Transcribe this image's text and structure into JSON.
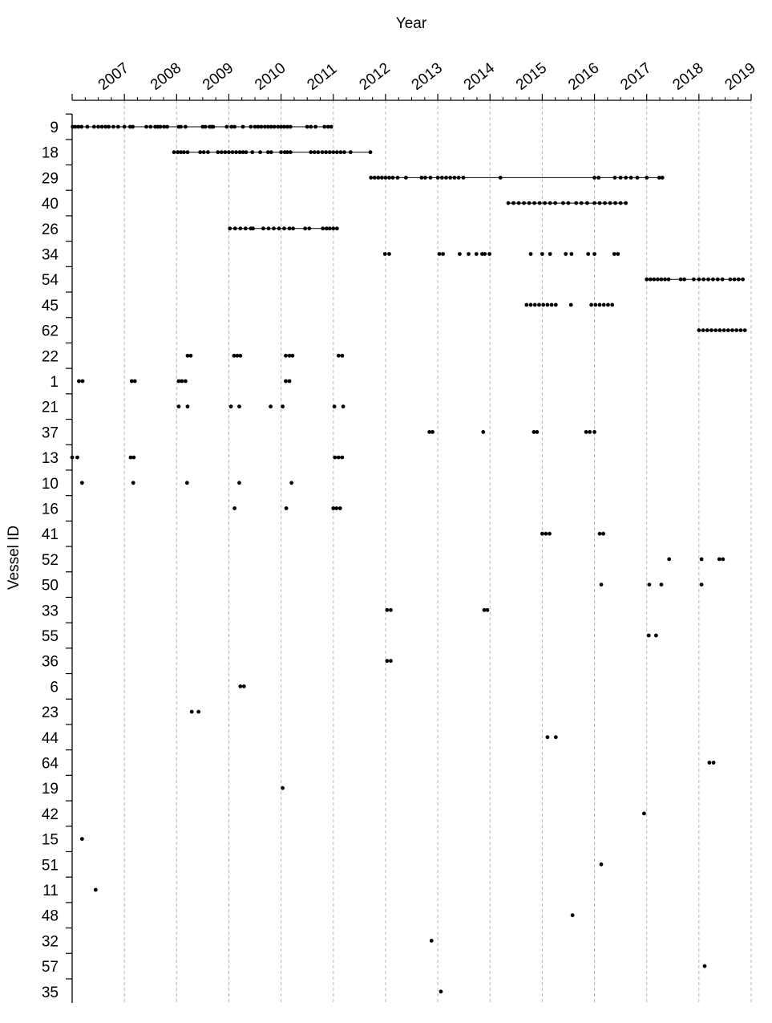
{
  "chart_data": {
    "type": "scatter",
    "title": "",
    "xlabel": "Year",
    "ylabel": "Vessel ID",
    "xlim": [
      2007.0,
      2020.0
    ],
    "x_ticks": [
      "2007",
      "2008",
      "2009",
      "2010",
      "2011",
      "2012",
      "2013",
      "2014",
      "2015",
      "2016",
      "2017",
      "2018",
      "2019"
    ],
    "grid": true,
    "legend": "none",
    "series": [
      {
        "name": "9",
        "line": true,
        "x": [
          2007.01,
          2007.06,
          2007.12,
          2007.18,
          2007.29,
          2007.42,
          2007.5,
          2007.57,
          2007.64,
          2007.7,
          2007.79,
          2007.88,
          2008.0,
          2008.11,
          2008.16,
          2008.42,
          2008.5,
          2008.59,
          2008.64,
          2008.69,
          2008.76,
          2008.82,
          2009.04,
          2009.08,
          2009.17,
          2009.5,
          2009.55,
          2009.63,
          2009.67,
          2009.7,
          2009.96,
          2010.05,
          2010.11,
          2010.27,
          2010.42,
          2010.5,
          2010.56,
          2010.62,
          2010.69,
          2010.75,
          2010.81,
          2010.87,
          2010.94,
          2011.0,
          2011.06,
          2011.12,
          2011.18,
          2011.5,
          2011.57,
          2011.66,
          2011.83,
          2011.9,
          2011.96
        ]
      },
      {
        "name": "18",
        "line": true,
        "x": [
          2008.95,
          2009.02,
          2009.08,
          2009.14,
          2009.21,
          2009.45,
          2009.52,
          2009.6,
          2009.79,
          2009.86,
          2009.93,
          2010.0,
          2010.07,
          2010.14,
          2010.21,
          2010.27,
          2010.33,
          2010.45,
          2010.6,
          2010.75,
          2010.81,
          2011.0,
          2011.07,
          2011.12,
          2011.18,
          2011.57,
          2011.64,
          2011.71,
          2011.79,
          2011.86,
          2011.93,
          2012.0,
          2012.07,
          2012.14,
          2012.21,
          2012.33,
          2012.71
        ]
      },
      {
        "name": "29",
        "line": true,
        "x": [
          2012.72,
          2012.79,
          2012.86,
          2012.93,
          2013.0,
          2013.07,
          2013.14,
          2013.23,
          2013.39,
          2013.69,
          2013.76,
          2013.86,
          2014.0,
          2014.08,
          2014.16,
          2014.24,
          2014.32,
          2014.4,
          2014.49,
          2015.2,
          2017.0,
          2017.08,
          2017.39,
          2017.5,
          2017.6,
          2017.7,
          2017.82,
          2018.0,
          2018.24,
          2018.3
        ]
      },
      {
        "name": "40",
        "line": true,
        "x": [
          2015.35,
          2015.45,
          2015.55,
          2015.65,
          2015.75,
          2015.85,
          2015.95,
          2016.05,
          2016.15,
          2016.25,
          2016.4,
          2016.5,
          2016.65,
          2016.75,
          2016.86,
          2017.0,
          2017.1,
          2017.2,
          2017.3,
          2017.4,
          2017.5,
          2017.6
        ]
      },
      {
        "name": "26",
        "line": true,
        "x": [
          2010.02,
          2010.12,
          2010.22,
          2010.32,
          2010.42,
          2010.46,
          2010.66,
          2010.76,
          2010.86,
          2010.96,
          2011.06,
          2011.16,
          2011.23,
          2011.46,
          2011.54,
          2011.8,
          2011.87,
          2011.93,
          2012.0,
          2012.07
        ]
      },
      {
        "name": "34",
        "line": false,
        "x": [
          2012.99,
          2013.07,
          2014.03,
          2014.1,
          2014.42,
          2014.59,
          2014.74,
          2014.85,
          2014.9,
          2014.99,
          2015.78,
          2016.0,
          2016.15,
          2016.45,
          2016.56,
          2016.88,
          2017.0,
          2017.38,
          2017.45
        ]
      },
      {
        "name": "54",
        "line": true,
        "x": [
          2018.0,
          2018.07,
          2018.14,
          2018.21,
          2018.28,
          2018.35,
          2018.42,
          2018.65,
          2018.72,
          2018.9,
          2019.0,
          2019.09,
          2019.18,
          2019.27,
          2019.36,
          2019.45,
          2019.6,
          2019.68,
          2019.76,
          2019.84
        ]
      },
      {
        "name": "45",
        "line": false,
        "x": [
          2015.7,
          2015.78,
          2015.86,
          2015.94,
          2016.02,
          2016.1,
          2016.18,
          2016.26,
          2016.55,
          2016.94,
          2017.02,
          2017.1,
          2017.18,
          2017.26,
          2017.34
        ]
      },
      {
        "name": "62",
        "line": true,
        "x": [
          2019.0,
          2019.08,
          2019.16,
          2019.24,
          2019.32,
          2019.4,
          2019.48,
          2019.56,
          2019.64,
          2019.72,
          2019.8,
          2019.88
        ]
      },
      {
        "name": "22",
        "line": false,
        "x": [
          2009.21,
          2009.27,
          2010.1,
          2010.16,
          2010.22,
          2011.09,
          2011.16,
          2011.22,
          2012.1,
          2012.17
        ]
      },
      {
        "name": "1",
        "line": false,
        "x": [
          2007.13,
          2007.2,
          2008.14,
          2008.2,
          2009.04,
          2009.1,
          2009.17,
          2011.09,
          2011.16
        ]
      },
      {
        "name": "21",
        "line": false,
        "x": [
          2009.04,
          2009.21,
          2010.04,
          2010.2,
          2010.8,
          2011.03,
          2012.02,
          2012.19
        ]
      },
      {
        "name": "37",
        "line": false,
        "x": [
          2013.84,
          2013.9,
          2014.87,
          2015.84,
          2015.9,
          2016.84,
          2016.91,
          2017.0
        ]
      },
      {
        "name": "13",
        "line": false,
        "x": [
          2007.0,
          2007.1,
          2008.12,
          2008.18,
          2012.03,
          2012.1,
          2012.17
        ]
      },
      {
        "name": "10",
        "line": false,
        "x": [
          2007.19,
          2008.17,
          2009.2,
          2010.2,
          2011.2
        ]
      },
      {
        "name": "16",
        "line": false,
        "x": [
          2010.11,
          2011.1,
          2012.0,
          2012.06,
          2012.13
        ]
      },
      {
        "name": "41",
        "line": false,
        "x": [
          2016.0,
          2016.07,
          2016.14,
          2017.1,
          2017.17
        ]
      },
      {
        "name": "52",
        "line": false,
        "x": [
          2018.43,
          2019.05,
          2019.39,
          2019.46
        ]
      },
      {
        "name": "50",
        "line": false,
        "x": [
          2017.13,
          2018.05,
          2018.28,
          2019.05
        ]
      },
      {
        "name": "33",
        "line": false,
        "x": [
          2013.03,
          2013.1,
          2014.89,
          2014.95
        ]
      },
      {
        "name": "55",
        "line": false,
        "x": [
          2018.04,
          2018.18
        ]
      },
      {
        "name": "36",
        "line": false,
        "x": [
          2013.03,
          2013.1
        ]
      },
      {
        "name": "6",
        "line": false,
        "x": [
          2010.22,
          2010.29
        ]
      },
      {
        "name": "23",
        "line": false,
        "x": [
          2009.29,
          2009.42
        ]
      },
      {
        "name": "44",
        "line": false,
        "x": [
          2016.1,
          2016.26
        ]
      },
      {
        "name": "64",
        "line": false,
        "x": [
          2019.2,
          2019.28
        ]
      },
      {
        "name": "19",
        "line": false,
        "x": [
          2011.03
        ]
      },
      {
        "name": "42",
        "line": false,
        "x": [
          2017.95
        ]
      },
      {
        "name": "15",
        "line": false,
        "x": [
          2007.19
        ]
      },
      {
        "name": "51",
        "line": false,
        "x": [
          2017.13
        ]
      },
      {
        "name": "11",
        "line": false,
        "x": [
          2007.45
        ]
      },
      {
        "name": "48",
        "line": false,
        "x": [
          2016.58
        ]
      },
      {
        "name": "32",
        "line": false,
        "x": [
          2013.88
        ]
      },
      {
        "name": "57",
        "line": false,
        "x": [
          2019.11
        ]
      },
      {
        "name": "35",
        "line": false,
        "x": [
          2014.06
        ]
      }
    ]
  }
}
